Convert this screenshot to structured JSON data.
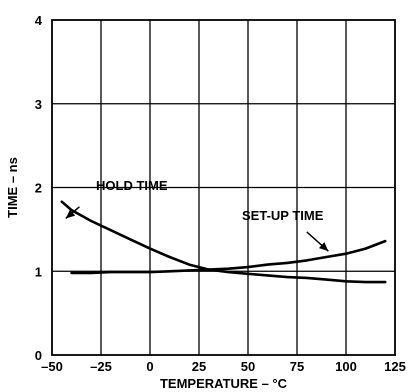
{
  "chart_data": {
    "type": "line",
    "title": "",
    "xlabel": "TEMPERATURE – °C",
    "ylabel": "TIME – ns",
    "xlim": [
      -50,
      125
    ],
    "ylim": [
      0,
      4
    ],
    "x_ticks": [
      -50,
      -25,
      0,
      25,
      50,
      75,
      100,
      125
    ],
    "x_tick_labels": [
      "–50",
      "–25",
      "0",
      "25",
      "50",
      "75",
      "100",
      "125"
    ],
    "y_ticks": [
      0,
      1,
      2,
      3,
      4
    ],
    "y_tick_labels": [
      "0",
      "1",
      "2",
      "3",
      "4"
    ],
    "grid": true,
    "series": [
      {
        "name": "HOLD TIME",
        "x": [
          -45,
          -40,
          -30,
          -20,
          -10,
          0,
          10,
          20,
          30,
          40,
          50,
          60,
          70,
          80,
          90,
          100,
          110,
          120
        ],
        "y": [
          1.83,
          1.73,
          1.6,
          1.49,
          1.38,
          1.27,
          1.17,
          1.08,
          1.02,
          0.99,
          0.97,
          0.95,
          0.93,
          0.92,
          0.9,
          0.88,
          0.87,
          0.87
        ]
      },
      {
        "name": "SET-UP TIME",
        "x": [
          -40,
          -30,
          -20,
          -10,
          0,
          10,
          20,
          30,
          40,
          50,
          60,
          70,
          80,
          90,
          100,
          110,
          120
        ],
        "y": [
          0.98,
          0.98,
          0.99,
          0.99,
          0.99,
          1.0,
          1.01,
          1.02,
          1.03,
          1.05,
          1.08,
          1.1,
          1.13,
          1.17,
          1.21,
          1.27,
          1.36
        ]
      }
    ],
    "annotations": [
      {
        "text": "HOLD TIME",
        "arrow_from": [
          -36,
          1.77
        ],
        "arrow_to": [
          -43,
          1.63
        ]
      },
      {
        "text": "SET-UP TIME",
        "arrow_from": [
          80,
          1.47
        ],
        "arrow_to": [
          91,
          1.24
        ]
      }
    ]
  }
}
